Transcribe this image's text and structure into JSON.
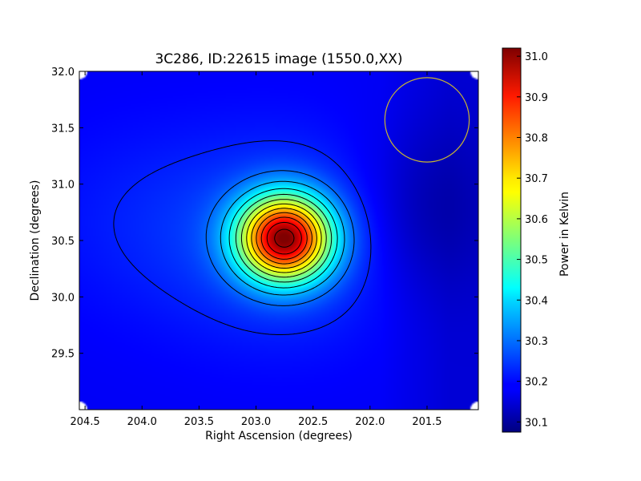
{
  "chart_data": {
    "type": "heatmap",
    "title": "3C286, ID:22615 image (1550.0,XX)",
    "xlabel": "Right Ascension (degrees)",
    "ylabel": "Declination (degrees)",
    "xlim": [
      204.55,
      201.05
    ],
    "ylim": [
      29.0,
      32.0
    ],
    "x_axis_inverted": true,
    "x_ticks": [
      204.5,
      204.0,
      203.5,
      203.0,
      202.5,
      202.0,
      201.5
    ],
    "x_tick_labels": [
      "204.5",
      "204.0",
      "203.5",
      "203.0",
      "202.5",
      "202.0",
      "201.5"
    ],
    "y_ticks": [
      29.5,
      30.0,
      30.5,
      31.0,
      31.5,
      32.0
    ],
    "y_tick_labels": [
      "29.5",
      "30.0",
      "30.5",
      "31.0",
      "31.5",
      "32.0"
    ],
    "colormap": "jet",
    "colorbar": {
      "label": "Power in Kelvin",
      "range": [
        30.075,
        31.02
      ],
      "ticks": [
        30.1,
        30.2,
        30.3,
        30.4,
        30.5,
        30.6,
        30.7,
        30.8,
        30.9,
        31.0
      ],
      "tick_labels": [
        "30.1",
        "30.2",
        "30.3",
        "30.4",
        "30.5",
        "30.6",
        "30.7",
        "30.8",
        "30.9",
        "31.0"
      ]
    },
    "peak": {
      "ra": 202.75,
      "dec": 30.52,
      "value": 31.02
    },
    "contours": "black",
    "beam_circle": {
      "ra": 201.5,
      "dec": 31.57,
      "radius_deg": 0.37,
      "color": "#c8b432"
    },
    "grid": false
  }
}
